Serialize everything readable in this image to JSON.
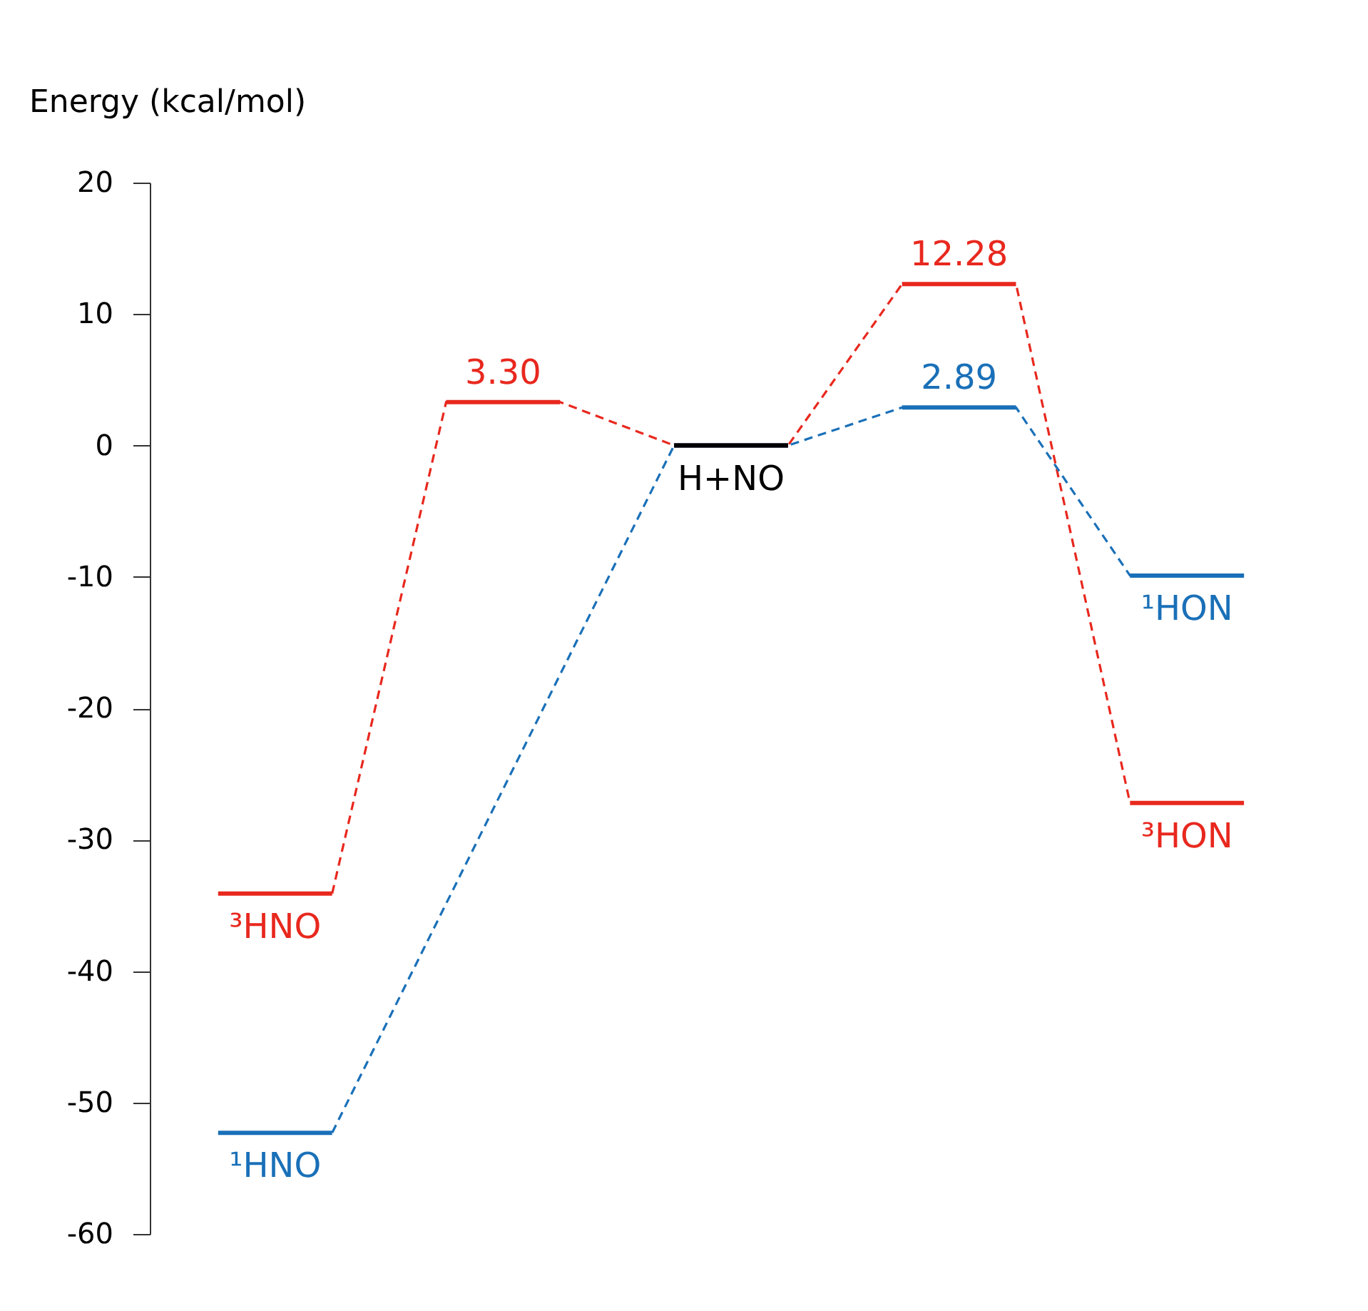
{
  "chart_data": {
    "type": "line",
    "ylabel": "Energy (kcal/mol)",
    "categories": [
      null,
      null,
      null,
      null,
      null,
      null,
      null,
      null,
      null,
      null
    ],
    "ylim": [
      -60,
      20
    ],
    "yticks": [
      -60,
      -50,
      -40,
      -30,
      -20,
      -10,
      0,
      10,
      20
    ],
    "tick_labels": "y",
    "grid": false,
    "line_style": "dashed",
    "series": [
      {
        "color": "#e8281e",
        "values": [
          -34.1,
          -34.1,
          3.3,
          3.3,
          0,
          0,
          12.28,
          12.28,
          -27.2,
          -27.2
        ],
        "value_labels": [
          "³HNO",
          null,
          "3.30",
          null,
          null,
          null,
          "12.28",
          null,
          "³HON",
          null
        ]
      },
      {
        "color": "#1a70b8",
        "values": [
          -52.3,
          -52.3,
          null,
          null,
          0,
          0,
          2.89,
          2.89,
          -9.9,
          -9.9
        ],
        "value_labels": [
          "¹HNO",
          null,
          null,
          null,
          null,
          null,
          "2.89",
          null,
          "¹HON",
          null
        ]
      },
      {
        "color": "#000000",
        "line_style": "solid",
        "values": [
          null,
          null,
          null,
          null,
          0,
          0,
          null,
          null,
          null,
          null
        ],
        "value_labels": [
          null,
          null,
          null,
          null,
          "H+NO",
          null,
          null,
          null,
          null,
          null
        ]
      }
    ]
  }
}
